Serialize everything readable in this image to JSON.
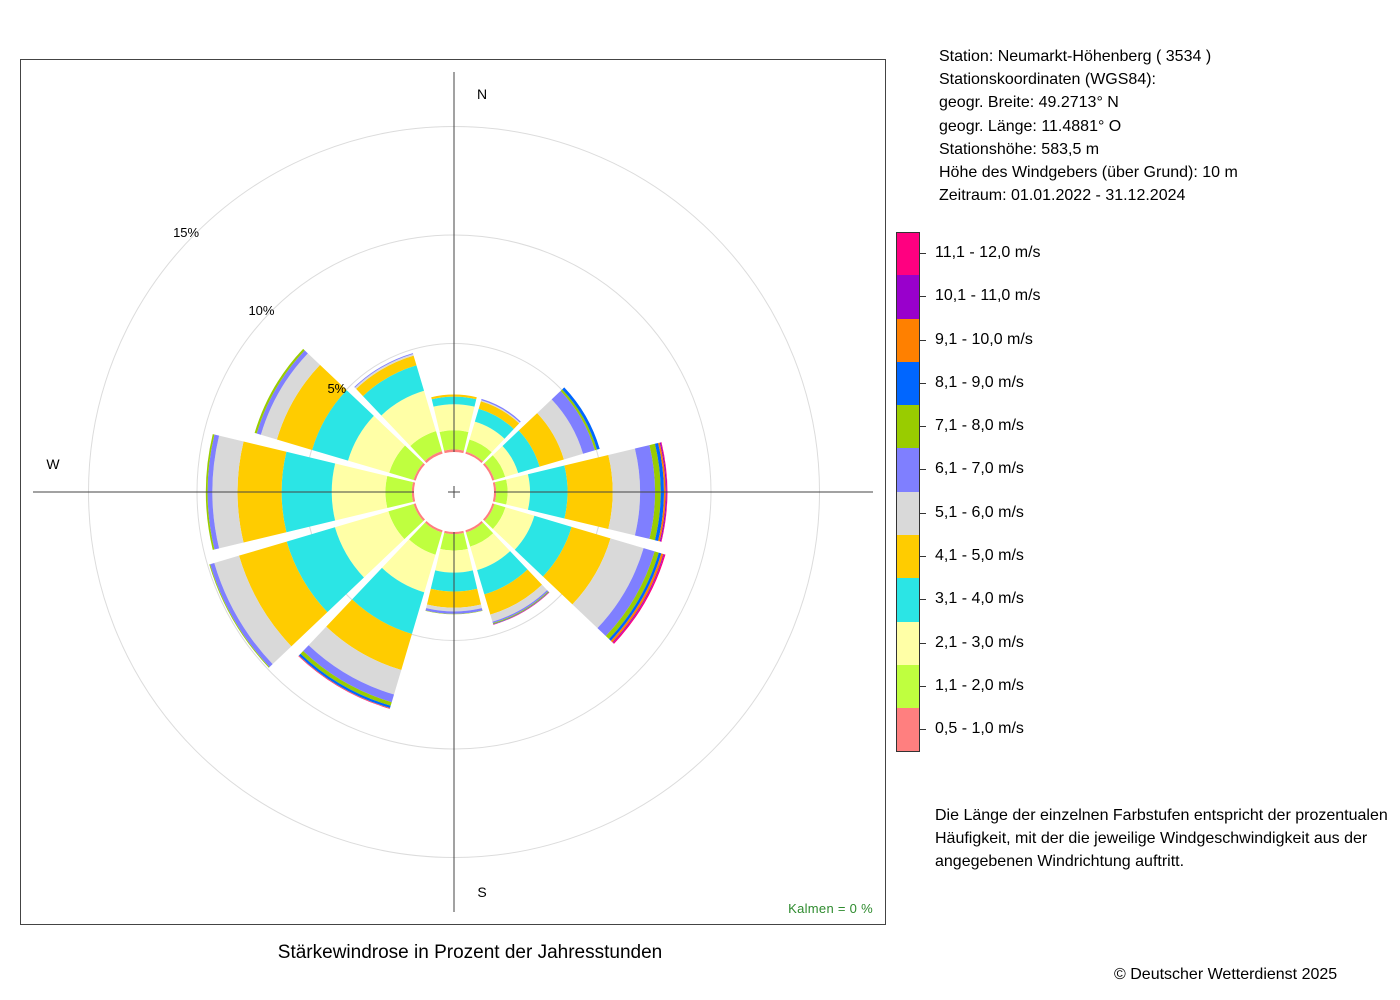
{
  "station": {
    "line1": "Station:  Neumarkt-Höhenberg  ( 3534 )",
    "line2": "Stationskoordinaten (WGS84):",
    "line3": "geogr. Breite: 49.2713° N",
    "line4": "geogr. Länge: 11.4881° O",
    "line5": "Stationshöhe: 583,5 m",
    "line6": "Höhe des Windgebers (über Grund): 10 m",
    "line7": "Zeitraum: 01.01.2022 - 31.12.2024"
  },
  "note": {
    "line1": "Die Länge der einzelnen Farbstufen entspricht der prozentualen",
    "line2": "Häufigkeit, mit der die jeweilige Windgeschwindigkeit aus der",
    "line3": "angegebenen Windrichtung auftritt."
  },
  "copyright": "© Deutscher Wetterdienst  2025",
  "calm": "Kalmen  =  0 %",
  "chart_data": {
    "type": "windrose",
    "title": "Stärkewindrose in Prozent der Jahresstunden",
    "compass_labels": [
      "N",
      "W",
      "S"
    ],
    "ring_values": [
      5,
      10,
      15
    ],
    "ring_labels": [
      "5%",
      "10%",
      "15%"
    ],
    "sector_directions_deg": [
      0,
      30,
      60,
      90,
      120,
      150,
      180,
      210,
      240,
      270,
      300,
      330
    ],
    "speed_classes": [
      {
        "label": "0,5 - 1,0 m/s",
        "color": "#ff7f7f"
      },
      {
        "label": "1,1 - 2,0 m/s",
        "color": "#bfff3f"
      },
      {
        "label": "2,1 - 3,0 m/s",
        "color": "#ffffa6"
      },
      {
        "label": "3,1 - 4,0 m/s",
        "color": "#2be5e5"
      },
      {
        "label": "4,1 - 5,0 m/s",
        "color": "#ffcc00"
      },
      {
        "label": "5,1 - 6,0 m/s",
        "color": "#d9d9d9"
      },
      {
        "label": "6,1 - 7,0 m/s",
        "color": "#7f7fff"
      },
      {
        "label": "7,1 - 8,0 m/s",
        "color": "#99cc00"
      },
      {
        "label": "8,1 - 9,0 m/s",
        "color": "#0066ff"
      },
      {
        "label": "9,1 - 10,0 m/s",
        "color": "#ff8000"
      },
      {
        "label": "10,1 - 11,0 m/s",
        "color": "#9900cc"
      },
      {
        "label": "11,1 - 12,0 m/s",
        "color": "#ff0080"
      }
    ],
    "series": [
      {
        "direction": 0,
        "values": [
          0.12,
          0.88,
          1.2,
          0.35,
          0.1,
          0,
          0,
          0,
          0,
          0,
          0,
          0
        ]
      },
      {
        "direction": 30,
        "values": [
          0.1,
          0.58,
          0.86,
          0.62,
          0.36,
          0.05,
          0.06,
          0,
          0,
          0,
          0,
          0
        ]
      },
      {
        "direction": 60,
        "values": [
          0.1,
          0.52,
          0.62,
          1.03,
          1.17,
          0.92,
          0.57,
          0.1,
          0.13,
          0,
          0,
          0
        ]
      },
      {
        "direction": 90,
        "values": [
          0.1,
          0.53,
          1.03,
          1.73,
          2.08,
          1.26,
          0.69,
          0.26,
          0.15,
          0.08,
          0.05,
          0.03
        ]
      },
      {
        "direction": 120,
        "values": [
          0.1,
          0.53,
          1.39,
          1.79,
          1.87,
          1.59,
          0.53,
          0.2,
          0.12,
          0.1,
          0.04,
          0.06
        ]
      },
      {
        "direction": 150,
        "values": [
          0.1,
          0.68,
          1.13,
          1.17,
          0.97,
          0.34,
          0.07,
          0.04,
          0.02,
          0,
          0,
          0.02
        ]
      },
      {
        "direction": 180,
        "values": [
          0.1,
          0.76,
          1.01,
          0.87,
          0.75,
          0.17,
          0.11,
          0.02,
          0,
          0,
          0,
          0
        ]
      },
      {
        "direction": 210,
        "values": [
          0.1,
          1.07,
          1.81,
          2.0,
          1.73,
          1.18,
          0.37,
          0.17,
          0.11,
          0.02,
          0,
          0.02
        ]
      },
      {
        "direction": 240,
        "values": [
          0.1,
          1.21,
          2.57,
          2.32,
          2.29,
          1.19,
          0.2,
          0.04,
          0,
          0,
          0,
          0
        ]
      },
      {
        "direction": 270,
        "values": [
          0.1,
          1.22,
          2.47,
          2.31,
          2.03,
          1.16,
          0.22,
          0.08,
          0,
          0,
          0,
          0
        ]
      },
      {
        "direction": 300,
        "values": [
          0.1,
          1.17,
          1.98,
          1.73,
          1.69,
          0.77,
          0.2,
          0.1,
          0,
          0,
          0,
          0
        ]
      },
      {
        "direction": 330,
        "values": [
          0.12,
          0.96,
          1.94,
          1.23,
          0.46,
          0.08,
          0.04,
          0,
          0,
          0,
          0,
          0
        ]
      }
    ]
  }
}
